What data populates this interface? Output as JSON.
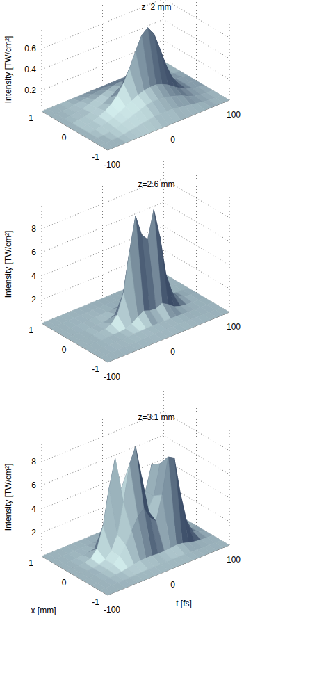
{
  "chart_data": [
    {
      "type": "surface",
      "title": "z=2 mm",
      "zlabel": "Intensity [TW/cm²]",
      "color": "#d4efee",
      "grid": true,
      "x": [
        -1,
        -0.75,
        -0.5,
        -0.25,
        0,
        0.25,
        0.5,
        0.75,
        1
      ],
      "t": [
        -100,
        -90,
        -80,
        -70,
        -60,
        -50,
        -40,
        -30,
        -20,
        -10,
        0,
        10,
        20,
        30,
        40,
        50,
        60,
        70,
        80,
        90,
        100
      ],
      "xlim": [
        -1,
        1
      ],
      "tlim": [
        -100,
        100
      ],
      "zlim": [
        0,
        0.8
      ],
      "xticks": [
        -1,
        0,
        1
      ],
      "tticks": [
        -100,
        0,
        100
      ],
      "zticks": [
        0.2,
        0.4,
        0.6
      ],
      "values": [
        [
          0,
          0,
          0,
          0,
          0,
          0,
          0,
          0,
          0,
          0,
          0,
          0,
          0,
          0,
          0,
          0,
          0,
          0,
          0,
          0,
          0
        ],
        [
          0,
          0,
          0,
          0,
          0.01,
          0.02,
          0.03,
          0.04,
          0.05,
          0.06,
          0.06,
          0.06,
          0.06,
          0.05,
          0.04,
          0.03,
          0.02,
          0.01,
          0,
          0,
          0
        ],
        [
          0,
          0,
          0,
          0.01,
          0.02,
          0.04,
          0.06,
          0.08,
          0.1,
          0.12,
          0.13,
          0.13,
          0.12,
          0.11,
          0.09,
          0.07,
          0.04,
          0.02,
          0.01,
          0,
          0
        ],
        [
          0,
          0,
          0.01,
          0.02,
          0.03,
          0.05,
          0.08,
          0.11,
          0.14,
          0.17,
          0.19,
          0.2,
          0.2,
          0.18,
          0.15,
          0.11,
          0.07,
          0.04,
          0.02,
          0.01,
          0
        ],
        [
          0,
          0,
          0.01,
          0.02,
          0.04,
          0.07,
          0.11,
          0.17,
          0.26,
          0.38,
          0.52,
          0.65,
          0.7,
          0.62,
          0.45,
          0.27,
          0.13,
          0.05,
          0.02,
          0.01,
          0
        ],
        [
          0,
          0,
          0.01,
          0.02,
          0.03,
          0.05,
          0.07,
          0.1,
          0.13,
          0.16,
          0.18,
          0.19,
          0.19,
          0.17,
          0.14,
          0.1,
          0.06,
          0.03,
          0.02,
          0.01,
          0
        ],
        [
          0,
          0,
          0,
          0.01,
          0.02,
          0.04,
          0.06,
          0.08,
          0.1,
          0.12,
          0.13,
          0.13,
          0.12,
          0.11,
          0.09,
          0.07,
          0.04,
          0.02,
          0.01,
          0,
          0
        ],
        [
          0,
          0,
          0,
          0,
          0.01,
          0.02,
          0.03,
          0.04,
          0.05,
          0.06,
          0.06,
          0.06,
          0.06,
          0.05,
          0.04,
          0.03,
          0.02,
          0.01,
          0,
          0,
          0
        ],
        [
          0,
          0,
          0,
          0,
          0,
          0,
          0,
          0,
          0,
          0,
          0,
          0,
          0,
          0,
          0,
          0,
          0,
          0,
          0,
          0,
          0
        ]
      ]
    },
    {
      "type": "surface",
      "title": "z=2.6 mm",
      "zlabel": "Intensity [TW/cm²]",
      "color": "#d4efee",
      "grid": true,
      "x": [
        -1,
        -0.75,
        -0.5,
        -0.25,
        0,
        0.25,
        0.5,
        0.75,
        1
      ],
      "t": [
        -100,
        -90,
        -80,
        -70,
        -60,
        -50,
        -40,
        -30,
        -20,
        -10,
        0,
        10,
        20,
        30,
        40,
        50,
        60,
        70,
        80,
        90,
        100
      ],
      "xlim": [
        -1,
        1
      ],
      "tlim": [
        -100,
        100
      ],
      "zlim": [
        0,
        10
      ],
      "xticks": [
        -1,
        0,
        1
      ],
      "tticks": [
        -100,
        0,
        100
      ],
      "zticks": [
        2,
        4,
        6,
        8
      ],
      "values": [
        [
          0,
          0,
          0,
          0,
          0,
          0,
          0,
          0,
          0,
          0,
          0,
          0,
          0,
          0,
          0,
          0,
          0,
          0,
          0,
          0,
          0
        ],
        [
          0,
          0,
          0,
          0,
          0.01,
          0.02,
          0.03,
          0.04,
          0.05,
          0.06,
          0.06,
          0.06,
          0.06,
          0.05,
          0.05,
          0.04,
          0.03,
          0.02,
          0.01,
          0,
          0
        ],
        [
          0,
          0,
          0,
          0.01,
          0.02,
          0.03,
          0.05,
          0.08,
          0.1,
          0.12,
          0.13,
          0.13,
          0.12,
          0.12,
          0.1,
          0.08,
          0.05,
          0.03,
          0.02,
          0.01,
          0
        ],
        [
          0,
          0,
          0,
          0,
          0.02,
          0.03,
          0.05,
          0.12,
          0.3,
          0.7,
          1,
          0.8,
          0.75,
          1,
          0.7,
          0.3,
          0.12,
          0.05,
          0.02,
          0.01,
          0
        ],
        [
          0,
          0,
          0,
          0,
          0.05,
          0.1,
          0.3,
          0.9,
          2.5,
          5.8,
          8.6,
          6.8,
          6.2,
          8.5,
          6,
          2.6,
          0.9,
          0.3,
          0.1,
          0.05,
          0
        ],
        [
          0,
          0,
          0,
          0,
          0.02,
          0.03,
          0.05,
          0.12,
          0.3,
          0.7,
          1,
          0.8,
          0.75,
          1,
          0.7,
          0.3,
          0.12,
          0.05,
          0.02,
          0.01,
          0
        ],
        [
          0,
          0,
          0,
          0.01,
          0.02,
          0.03,
          0.05,
          0.08,
          0.1,
          0.12,
          0.13,
          0.13,
          0.12,
          0.12,
          0.1,
          0.08,
          0.05,
          0.03,
          0.02,
          0.01,
          0
        ],
        [
          0,
          0,
          0,
          0,
          0.01,
          0.02,
          0.03,
          0.04,
          0.05,
          0.06,
          0.06,
          0.06,
          0.06,
          0.05,
          0.05,
          0.04,
          0.03,
          0.02,
          0.01,
          0,
          0
        ],
        [
          0,
          0,
          0,
          0,
          0,
          0,
          0,
          0,
          0,
          0,
          0,
          0,
          0,
          0,
          0,
          0,
          0,
          0,
          0,
          0,
          0
        ]
      ]
    },
    {
      "type": "surface",
      "title": "z=3.1 mm",
      "zlabel": "Intensity [TW/cm²]",
      "xlabel": "x [mm]",
      "tlabel": "t [fs]",
      "color": "#d4efee",
      "grid": true,
      "x": [
        -1,
        -0.75,
        -0.5,
        -0.25,
        0,
        0.25,
        0.5,
        0.75,
        1
      ],
      "t": [
        -100,
        -90,
        -80,
        -70,
        -60,
        -50,
        -40,
        -30,
        -20,
        -10,
        0,
        10,
        20,
        30,
        40,
        50,
        60,
        70,
        80,
        90,
        100
      ],
      "xlim": [
        -1,
        1
      ],
      "tlim": [
        -100,
        100
      ],
      "zlim": [
        0,
        10
      ],
      "xticks": [
        -1,
        0,
        1
      ],
      "tticks": [
        -100,
        0,
        100
      ],
      "zticks": [
        2,
        4,
        6,
        8
      ],
      "values": [
        [
          0,
          0,
          0,
          0,
          0,
          0,
          0,
          0,
          0,
          0,
          0,
          0,
          0,
          0,
          0,
          0,
          0,
          0,
          0,
          0,
          0
        ],
        [
          0,
          0,
          0,
          0,
          0.01,
          0.02,
          0.04,
          0.06,
          0.07,
          0.08,
          0.08,
          0.08,
          0.08,
          0.08,
          0.08,
          0.06,
          0.04,
          0.02,
          0.01,
          0,
          0
        ],
        [
          0,
          0,
          0,
          0.01,
          0.05,
          0.1,
          0.2,
          0.3,
          0.4,
          0.4,
          0.4,
          0.35,
          0.35,
          0.4,
          0.45,
          0.4,
          0.25,
          0.12,
          0.05,
          0.02,
          0
        ],
        [
          0,
          0,
          0,
          0.02,
          0.1,
          0.3,
          0.8,
          1.5,
          2.5,
          3.5,
          4,
          3,
          2.5,
          4.5,
          7.5,
          7.2,
          4,
          1.5,
          0.4,
          0.1,
          0
        ],
        [
          0,
          0,
          0,
          0,
          0.1,
          0.3,
          0.8,
          2,
          4.5,
          7.5,
          8.8,
          6,
          3,
          4,
          6.5,
          4,
          1.5,
          0.5,
          0.15,
          0.05,
          0
        ],
        [
          0,
          0,
          0,
          0.05,
          0.2,
          0.8,
          2.5,
          5.5,
          7.8,
          5,
          2.5,
          1.5,
          2,
          4,
          6,
          3.5,
          1.2,
          0.4,
          0.1,
          0.02,
          0
        ],
        [
          0,
          0,
          0,
          0.01,
          0.05,
          0.1,
          0.2,
          0.3,
          0.4,
          0.4,
          0.4,
          0.35,
          0.35,
          0.4,
          0.45,
          0.4,
          0.25,
          0.12,
          0.05,
          0.02,
          0
        ],
        [
          0,
          0,
          0,
          0,
          0.01,
          0.02,
          0.04,
          0.06,
          0.07,
          0.08,
          0.08,
          0.08,
          0.08,
          0.08,
          0.08,
          0.06,
          0.04,
          0.02,
          0.01,
          0,
          0
        ],
        [
          0,
          0,
          0,
          0,
          0,
          0,
          0,
          0,
          0,
          0,
          0,
          0,
          0,
          0,
          0,
          0,
          0,
          0,
          0,
          0,
          0
        ]
      ]
    }
  ]
}
